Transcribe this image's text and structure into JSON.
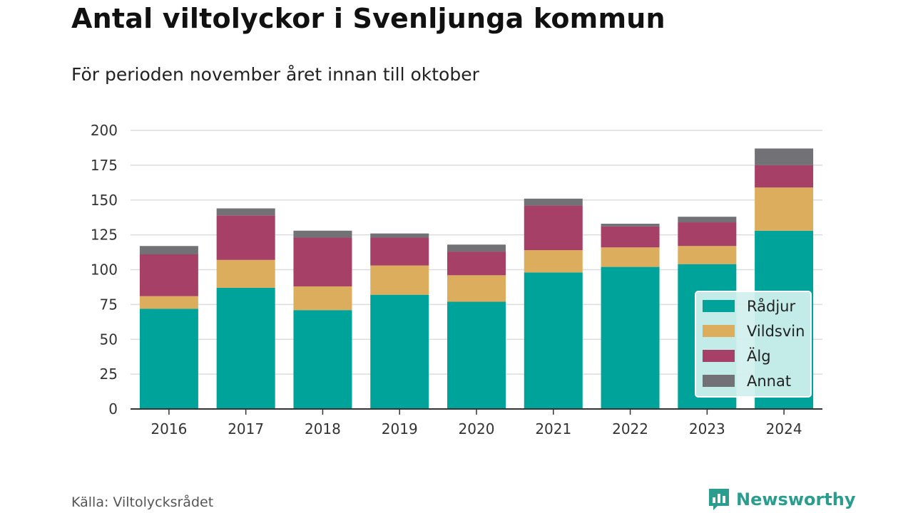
{
  "chart_data": {
    "type": "bar",
    "stacked": true,
    "title": "Antal viltolyckor i Svenljunga kommun",
    "subtitle": "För perioden november året innan till oktober",
    "categories": [
      "2016",
      "2017",
      "2018",
      "2019",
      "2020",
      "2021",
      "2022",
      "2023",
      "2024"
    ],
    "series": [
      {
        "name": "Rådjur",
        "color": "#00a39a",
        "values": [
          72,
          87,
          71,
          82,
          77,
          98,
          102,
          104,
          128
        ]
      },
      {
        "name": "Vildsvin",
        "color": "#dbad5c",
        "values": [
          9,
          20,
          17,
          21,
          19,
          16,
          14,
          13,
          31
        ]
      },
      {
        "name": "Älg",
        "color": "#a64066",
        "values": [
          30,
          32,
          35,
          20,
          17,
          32,
          15,
          17,
          16
        ]
      },
      {
        "name": "Annat",
        "color": "#717176",
        "values": [
          6,
          5,
          5,
          3,
          5,
          5,
          2,
          4,
          12
        ]
      }
    ],
    "ylim": [
      0,
      200
    ],
    "yticks": [
      0,
      25,
      50,
      75,
      100,
      125,
      150,
      175,
      200
    ],
    "grid": true,
    "legend_position": "bottom-right"
  },
  "footer": {
    "source": "Källa: Viltolycksrådet",
    "brand": "Newsworthy"
  },
  "icons": {
    "brand_logo": "bar-chart-speech-bubble-icon"
  }
}
